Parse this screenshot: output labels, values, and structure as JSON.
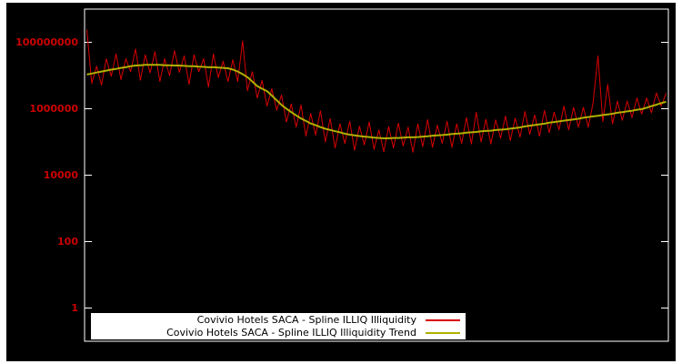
{
  "window": {
    "page_background": "#ffffff",
    "plot_background": "#000000",
    "frame_color": "#ffffff"
  },
  "legend": {
    "background": "#ffffff",
    "text_color": "#000000"
  },
  "chart_data": {
    "type": "line",
    "title": "",
    "xlabel": "",
    "ylabel": "",
    "y_scale": "log",
    "ylim": [
      0.1,
      1000000000
    ],
    "grid": false,
    "legend_position": "bottom-center",
    "axis_tick_label_color": "#cc0000",
    "yticks": [
      {
        "value": 1,
        "label": "1"
      },
      {
        "value": 100,
        "label": "100"
      },
      {
        "value": 10000,
        "label": "10000"
      },
      {
        "value": 1000000,
        "label": "1000000"
      },
      {
        "value": 100000000,
        "label": "100000000"
      }
    ],
    "series": [
      {
        "name": "Covivio Hotels SACA - Spline ILLIQ Illiquidity",
        "color": "#d80000",
        "line_width": 1,
        "values": [
          240000000,
          5800000,
          19000000,
          5200000,
          32000000,
          9500000,
          45000000,
          7600000,
          32000000,
          13000000,
          63000000,
          7200000,
          42000000,
          12000000,
          52000000,
          6600000,
          32000000,
          10000000,
          56000000,
          12500000,
          39000000,
          5400000,
          42000000,
          13000000,
          32000000,
          4500000,
          45000000,
          8700000,
          27000000,
          6600000,
          30000000,
          6600000,
          110000000,
          3500000,
          13000000,
          2100000,
          7100000,
          1200000,
          4000000,
          910000,
          2600000,
          400000,
          1400000,
          280000,
          1300000,
          150000,
          720000,
          160000,
          870000,
          100000,
          510000,
          66000,
          350000,
          89000,
          420000,
          56000,
          300000,
          81000,
          400000,
          60000,
          230000,
          51000,
          290000,
          66000,
          370000,
          76000,
          280000,
          49000,
          350000,
          72000,
          470000,
          69000,
          320000,
          91000,
          420000,
          69000,
          350000,
          91000,
          540000,
          87000,
          790000,
          100000,
          480000,
          87000,
          460000,
          130000,
          600000,
          110000,
          520000,
          140000,
          830000,
          170000,
          650000,
          150000,
          890000,
          190000,
          790000,
          230000,
          1200000,
          230000,
          1100000,
          280000,
          1100000,
          280000,
          1500000,
          39000000,
          410000,
          5400000,
          350000,
          1700000,
          450000,
          1700000,
          550000,
          2100000,
          690000,
          2100000,
          760000,
          3000000,
          1200000,
          2900000
        ]
      },
      {
        "name": "Covivio Hotels SACA - Spline ILLIQ Illiquidity Trend",
        "color": "#b0b000",
        "line_width": 2,
        "values": [
          10700000,
          11500000,
          12300000,
          13200000,
          14100000,
          15100000,
          15800000,
          17000000,
          17800000,
          19100000,
          20000000,
          20400000,
          20900000,
          20900000,
          20900000,
          20900000,
          20400000,
          20400000,
          20000000,
          20000000,
          19500000,
          19100000,
          19100000,
          18600000,
          18200000,
          17800000,
          17800000,
          17400000,
          17000000,
          16600000,
          15100000,
          13200000,
          11000000,
          8900000,
          6600000,
          4800000,
          4000000,
          3400000,
          2500000,
          1800000,
          1300000,
          1000000,
          790000,
          630000,
          510000,
          430000,
          360000,
          320000,
          280000,
          250000,
          230000,
          210000,
          195000,
          178000,
          166000,
          158000,
          151000,
          145000,
          141000,
          135000,
          132000,
          129000,
          129000,
          132000,
          132000,
          135000,
          138000,
          138000,
          141000,
          145000,
          148000,
          155000,
          158000,
          162000,
          166000,
          174000,
          178000,
          182000,
          191000,
          195000,
          200000,
          209000,
          214000,
          219000,
          229000,
          234000,
          240000,
          251000,
          263000,
          275000,
          295000,
          309000,
          324000,
          339000,
          355000,
          380000,
          398000,
          417000,
          437000,
          457000,
          479000,
          501000,
          537000,
          562000,
          589000,
          617000,
          646000,
          676000,
          708000,
          759000,
          794000,
          832000,
          871000,
          933000,
          977000,
          1070000,
          1200000,
          1320000,
          1480000,
          1620000
        ]
      }
    ]
  }
}
